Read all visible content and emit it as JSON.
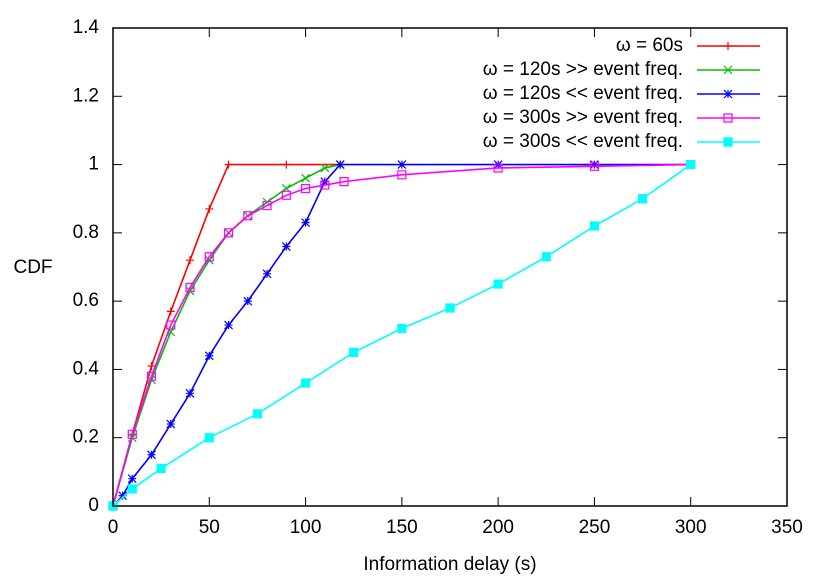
{
  "chart_data": {
    "type": "line",
    "x_label": "Information delay (s)",
    "y_label": "CDF",
    "xlim": [
      0,
      350
    ],
    "xticks": [
      0,
      50,
      100,
      150,
      200,
      250,
      300,
      350
    ],
    "ylim": [
      0,
      1.4
    ],
    "yticks": [
      0,
      0.2,
      0.4,
      0.6,
      0.8,
      1,
      1.2,
      1.4
    ],
    "legend": "top-right",
    "series": [
      {
        "name": "ω = 60s",
        "color": "#ff0000",
        "marker": "plus",
        "x": [
          0,
          10,
          20,
          30,
          40,
          50,
          60,
          90,
          118
        ],
        "values": [
          0,
          0.21,
          0.41,
          0.57,
          0.72,
          0.87,
          1,
          1,
          1
        ]
      },
      {
        "name": "ω = 120s >> event freq.",
        "color": "#00c000",
        "marker": "cross",
        "x": [
          0,
          10,
          20,
          30,
          40,
          50,
          60,
          70,
          80,
          90,
          100,
          110,
          118
        ],
        "values": [
          0,
          0.2,
          0.37,
          0.51,
          0.63,
          0.72,
          0.8,
          0.85,
          0.89,
          0.93,
          0.96,
          0.99,
          1
        ]
      },
      {
        "name": "ω = 120s << event freq.",
        "color": "#0000ff",
        "marker": "star",
        "x": [
          0,
          5,
          10,
          20,
          30,
          40,
          50,
          60,
          70,
          80,
          90,
          100,
          110,
          118,
          150,
          200,
          250,
          300
        ],
        "values": [
          0,
          0.03,
          0.08,
          0.15,
          0.24,
          0.33,
          0.44,
          0.53,
          0.6,
          0.68,
          0.76,
          0.83,
          0.95,
          1,
          1,
          1,
          1,
          1
        ]
      },
      {
        "name": "ω = 300s >> event freq.",
        "color": "#ff00ff",
        "marker": "open-square",
        "x": [
          0,
          10,
          20,
          30,
          40,
          50,
          60,
          70,
          80,
          90,
          100,
          110,
          120,
          150,
          200,
          250,
          300
        ],
        "values": [
          0,
          0.21,
          0.38,
          0.53,
          0.64,
          0.73,
          0.8,
          0.85,
          0.88,
          0.91,
          0.93,
          0.94,
          0.95,
          0.97,
          0.99,
          0.995,
          1
        ]
      },
      {
        "name": "ω = 300s << event freq.",
        "color": "#00ffff",
        "marker": "filled-square",
        "x": [
          0,
          10,
          25,
          50,
          75,
          100,
          125,
          150,
          175,
          200,
          225,
          250,
          275,
          300
        ],
        "values": [
          0,
          0.05,
          0.11,
          0.2,
          0.27,
          0.36,
          0.45,
          0.52,
          0.58,
          0.65,
          0.73,
          0.82,
          0.9,
          1
        ]
      }
    ]
  }
}
